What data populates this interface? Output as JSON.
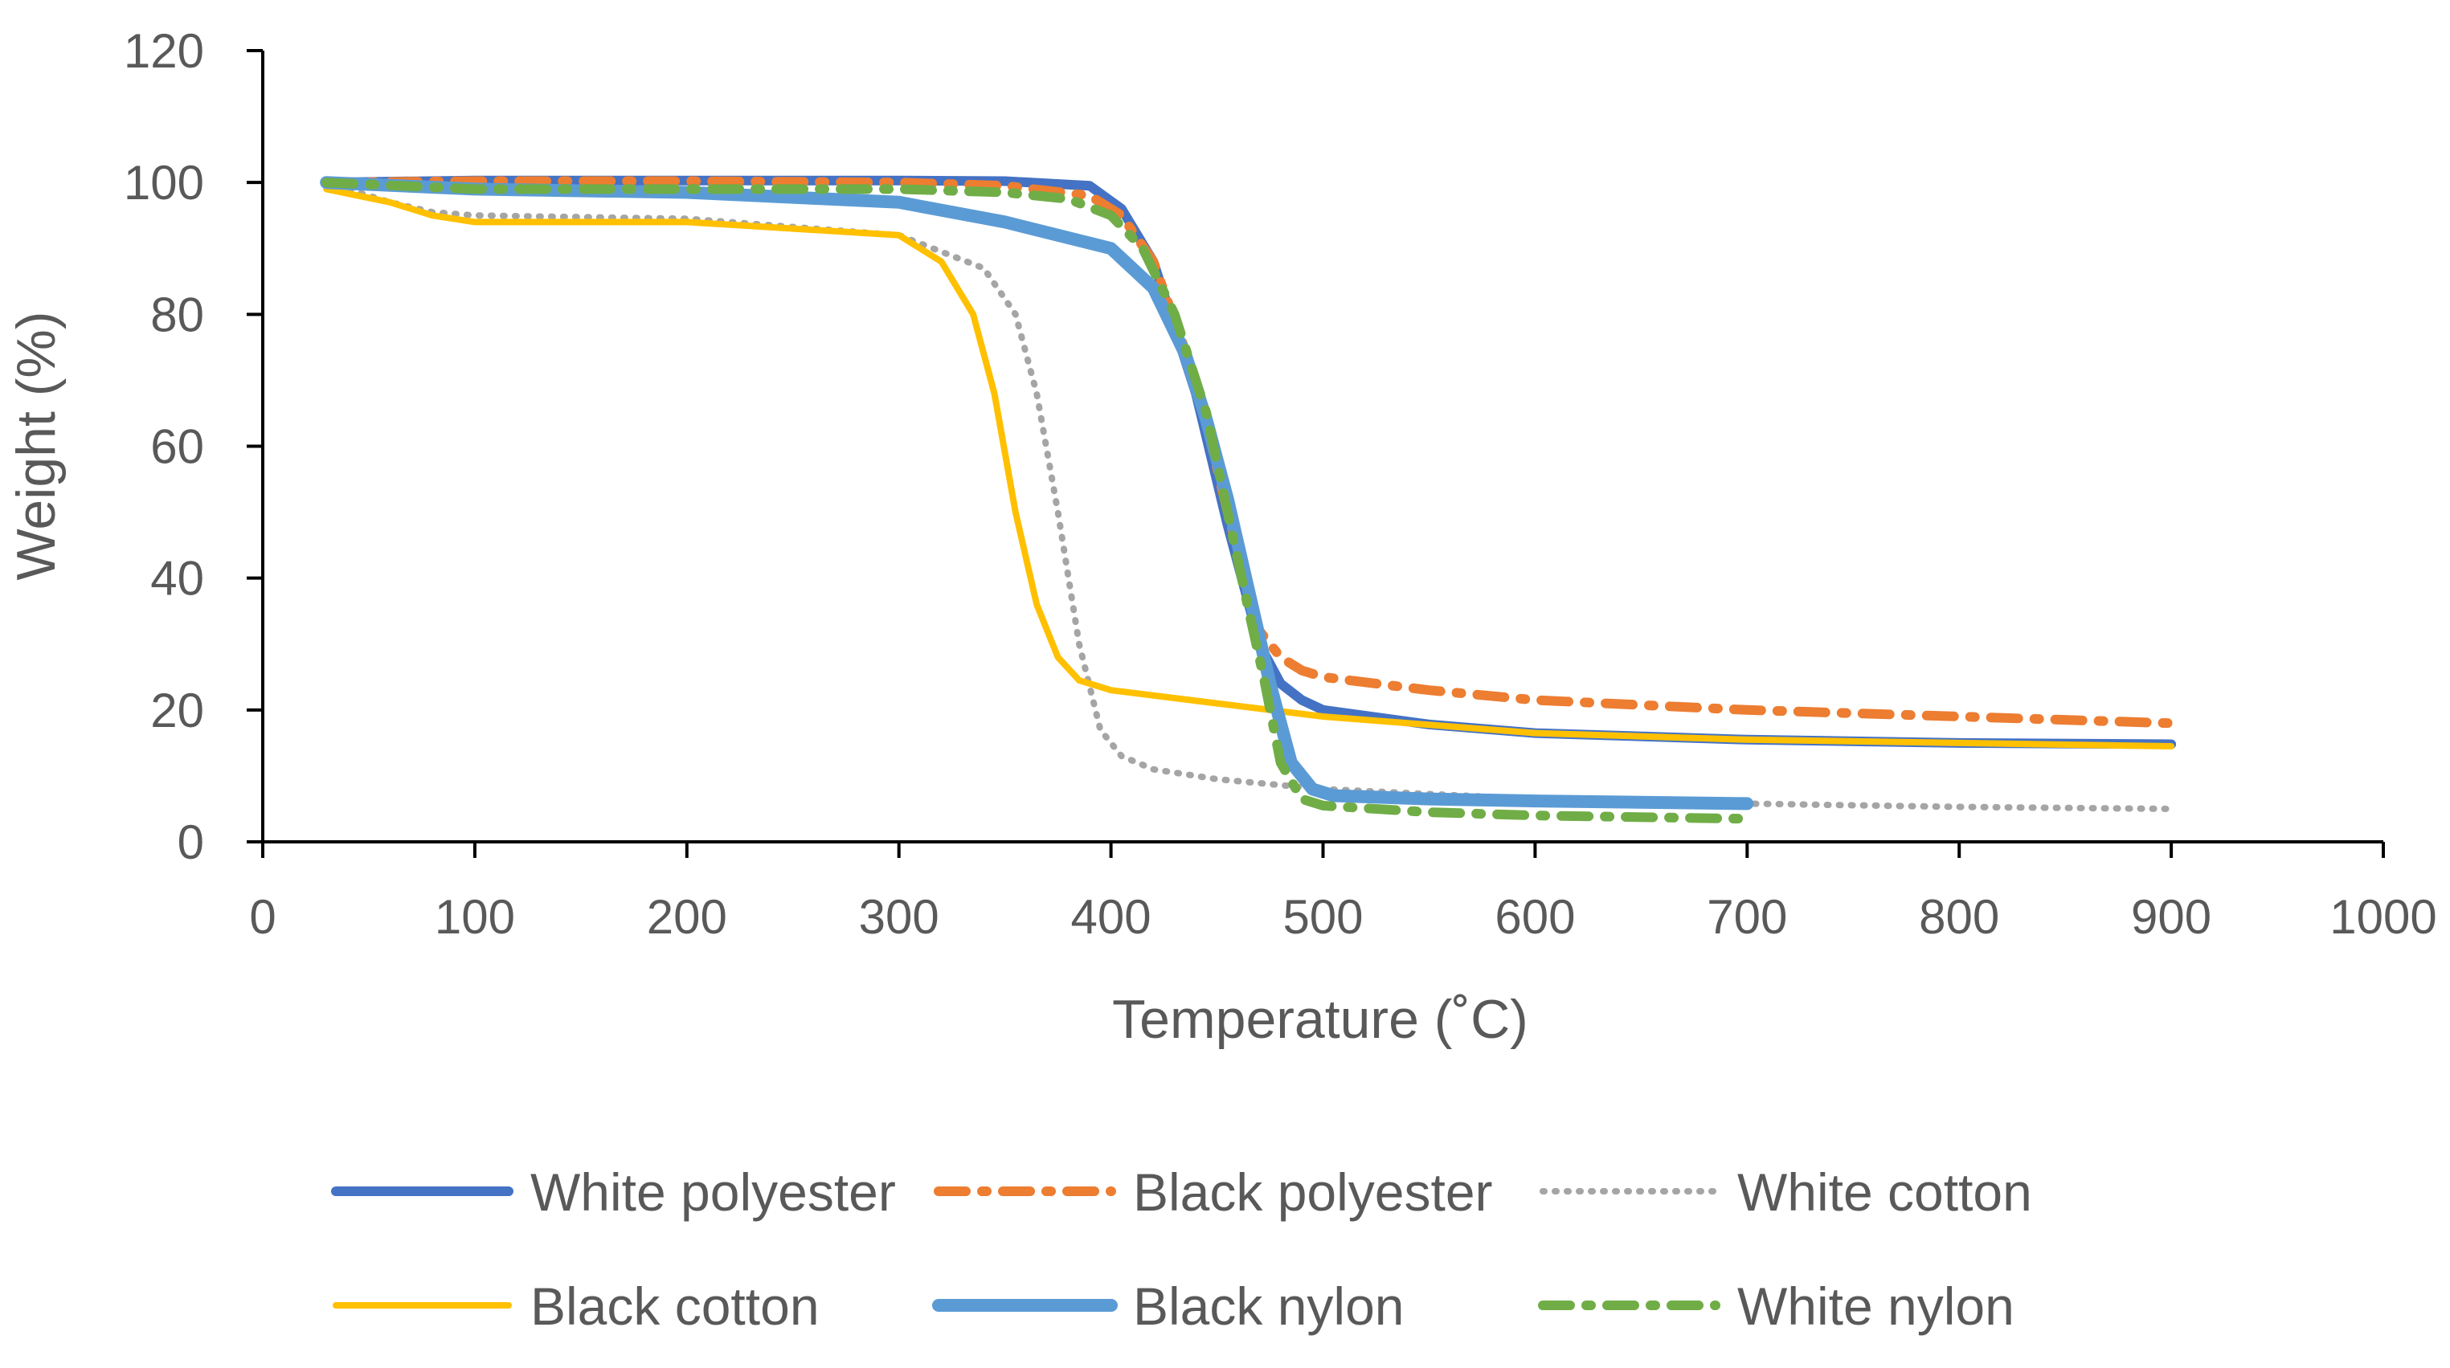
{
  "chart_data": {
    "type": "line",
    "title": "",
    "xlabel": "Temperature (˚C)",
    "ylabel": "Weight (%)",
    "xlim": [
      0,
      1000
    ],
    "ylim": [
      0,
      120
    ],
    "xticks": [
      0,
      100,
      200,
      300,
      400,
      500,
      600,
      700,
      800,
      900,
      1000
    ],
    "yticks": [
      0,
      20,
      40,
      60,
      80,
      100,
      120
    ],
    "grid": false,
    "legend_position": "bottom",
    "series": [
      {
        "name": "White polyester",
        "color": "#4472C4",
        "dash": "solid",
        "x": [
          30,
          100,
          200,
          300,
          350,
          390,
          405,
          420,
          440,
          455,
          470,
          480,
          490,
          500,
          550,
          600,
          700,
          800,
          900
        ],
        "y": [
          100,
          100.3,
          100.3,
          100.3,
          100.2,
          99.5,
          96,
          88,
          68,
          48,
          30,
          24,
          21.5,
          20,
          17.8,
          16.5,
          15.5,
          15,
          14.8
        ]
      },
      {
        "name": "Black polyester",
        "color": "#ED7D31",
        "dash": "dashdot",
        "x": [
          30,
          100,
          200,
          300,
          350,
          390,
          405,
          420,
          440,
          455,
          470,
          480,
          490,
          500,
          550,
          600,
          700,
          800,
          900
        ],
        "y": [
          100,
          100.2,
          100.2,
          100,
          99.5,
          98,
          95,
          88,
          70,
          50,
          32,
          28,
          26,
          25,
          23,
          21.5,
          20,
          19,
          18
        ]
      },
      {
        "name": "White cotton",
        "color": "#A5A5A5",
        "dash": "dot",
        "x": [
          30,
          60,
          80,
          100,
          200,
          300,
          340,
          355,
          365,
          375,
          385,
          395,
          405,
          420,
          450,
          500,
          600,
          700,
          800,
          900
        ],
        "y": [
          100,
          97,
          95.5,
          95,
          94.5,
          92,
          87,
          80,
          68,
          50,
          30,
          17,
          13,
          11,
          9.5,
          8,
          6.5,
          5.8,
          5.3,
          5
        ]
      },
      {
        "name": "Black cotton",
        "color": "#FFC000",
        "dash": "solid",
        "x": [
          30,
          60,
          80,
          100,
          200,
          300,
          320,
          335,
          345,
          355,
          365,
          375,
          385,
          400,
          450,
          500,
          600,
          700,
          800,
          900
        ],
        "y": [
          99,
          97,
          95,
          94,
          94,
          92,
          88,
          80,
          68,
          50,
          36,
          28,
          24.5,
          23,
          21,
          19,
          16.5,
          15.5,
          15,
          14.5
        ]
      },
      {
        "name": "Black nylon",
        "color": "#5B9BD5",
        "dash": "solid",
        "x": [
          30,
          100,
          200,
          300,
          350,
          400,
          420,
          435,
          445,
          455,
          465,
          475,
          485,
          495,
          505,
          550,
          600,
          700
        ],
        "y": [
          100,
          99,
          98.5,
          97,
          94,
          90,
          84,
          74,
          64,
          52,
          38,
          24,
          12,
          8,
          7,
          6.5,
          6.2,
          5.8
        ]
      },
      {
        "name": "White nylon",
        "color": "#70AD47",
        "dash": "dashdot",
        "x": [
          30,
          100,
          200,
          300,
          350,
          380,
          400,
          415,
          430,
          445,
          455,
          465,
          472,
          480,
          490,
          500,
          550,
          600,
          700
        ],
        "y": [
          100,
          99,
          99,
          99,
          98.5,
          97.5,
          95,
          90,
          80,
          65,
          50,
          35,
          25,
          12,
          6.5,
          5.5,
          4.5,
          4,
          3.5
        ]
      }
    ]
  }
}
